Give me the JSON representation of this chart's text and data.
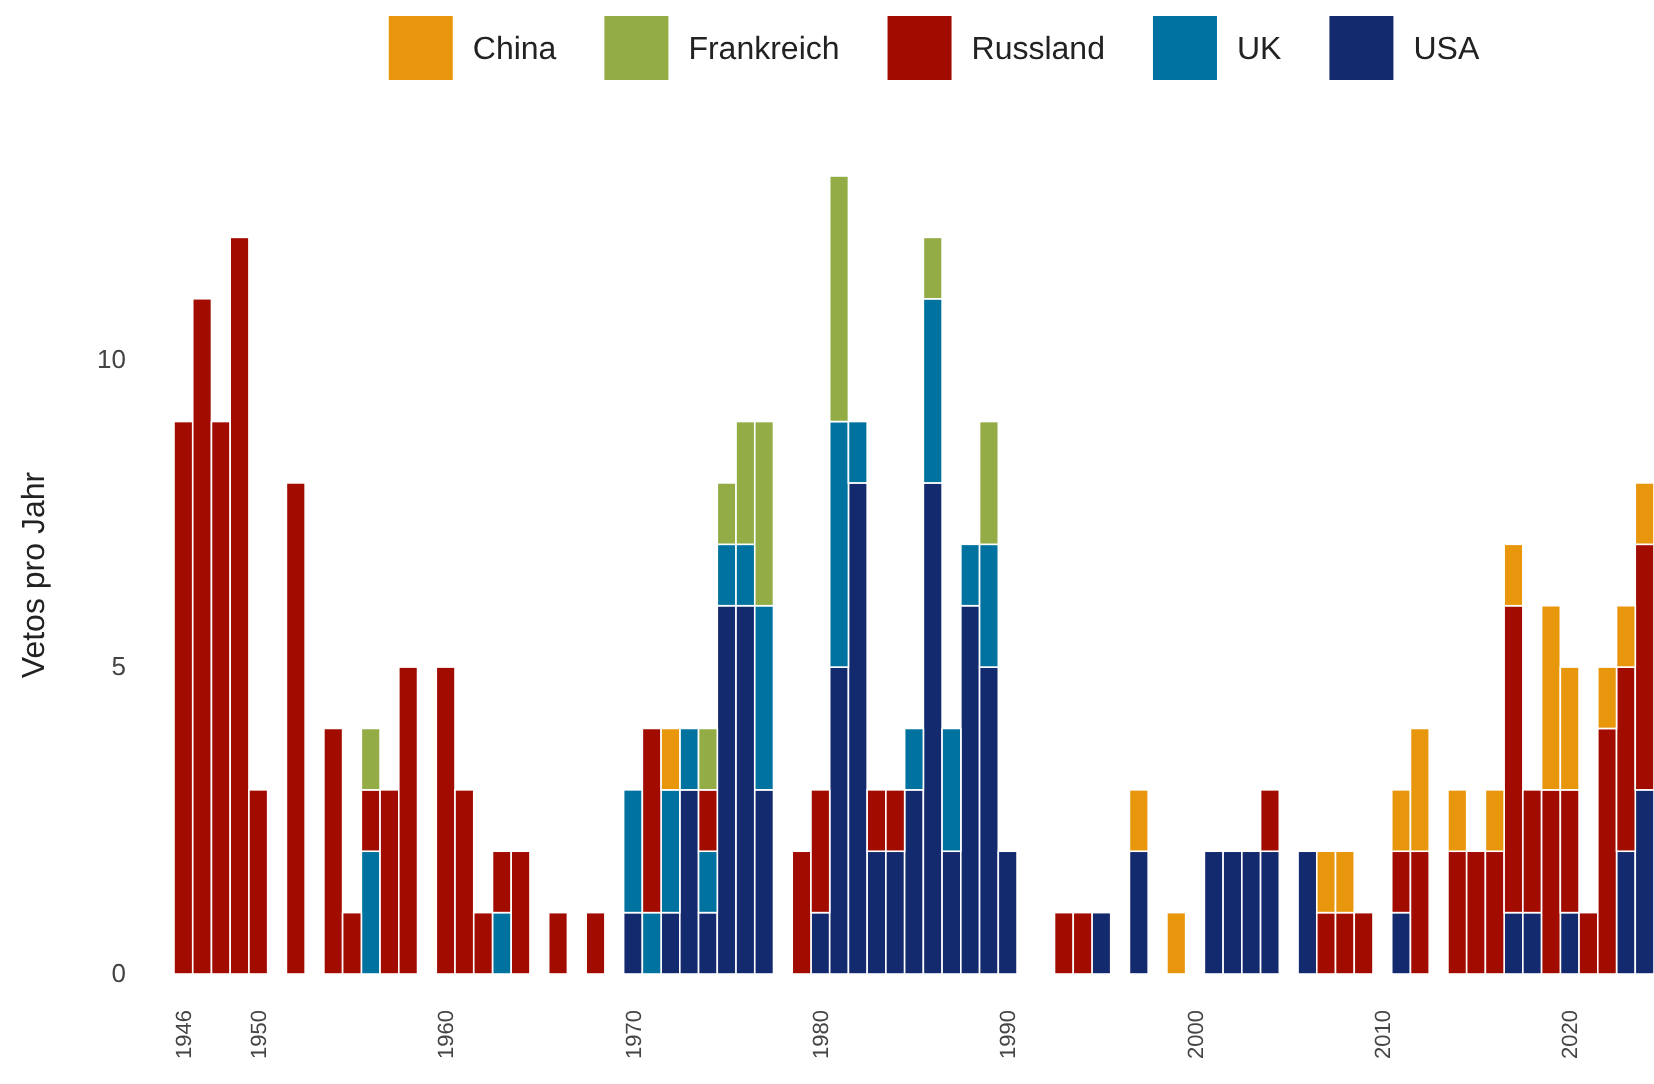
{
  "chart_data": {
    "type": "bar",
    "stacked": true,
    "ylabel": "Vetos pro Jahr",
    "legend": "top",
    "grid": false,
    "x": [
      1946,
      1947,
      1948,
      1949,
      1950,
      1951,
      1952,
      1953,
      1954,
      1955,
      1956,
      1957,
      1958,
      1959,
      1960,
      1961,
      1962,
      1963,
      1964,
      1965,
      1966,
      1967,
      1968,
      1969,
      1970,
      1971,
      1972,
      1973,
      1974,
      1975,
      1976,
      1977,
      1978,
      1979,
      1980,
      1981,
      1982,
      1983,
      1984,
      1985,
      1986,
      1987,
      1988,
      1989,
      1990,
      1991,
      1992,
      1993,
      1994,
      1995,
      1996,
      1997,
      1998,
      1999,
      2000,
      2001,
      2002,
      2003,
      2004,
      2005,
      2006,
      2007,
      2008,
      2009,
      2010,
      2011,
      2012,
      2013,
      2014,
      2015,
      2016,
      2017,
      2018,
      2019,
      2020,
      2021,
      2022,
      2023,
      2024
    ],
    "xlim": [
      1945.5,
      2024.5
    ],
    "xticks": [
      1946,
      1950,
      1960,
      1970,
      1980,
      1990,
      2000,
      2010,
      2020
    ],
    "ylim": [
      0,
      13
    ],
    "yticks": [
      0,
      5,
      10
    ],
    "series": [
      {
        "name": "USA",
        "color": "#142a6e",
        "values": [
          0,
          0,
          0,
          0,
          0,
          0,
          0,
          0,
          0,
          0,
          0,
          0,
          0,
          0,
          0,
          0,
          0,
          0,
          0,
          0,
          0,
          0,
          0,
          0,
          1,
          0,
          1,
          3,
          1,
          6,
          6,
          3,
          0,
          0,
          1,
          5,
          8,
          2,
          2,
          3,
          8,
          2,
          6,
          5,
          2,
          0,
          0,
          0,
          0,
          1,
          0,
          2,
          0,
          0,
          0,
          2,
          2,
          2,
          2,
          0,
          2,
          0,
          0,
          0,
          0,
          1,
          0,
          0,
          0,
          0,
          0,
          1,
          1,
          0,
          1,
          0,
          0,
          2,
          3
        ]
      },
      {
        "name": "UK",
        "color": "#00729f",
        "values": [
          0,
          0,
          0,
          0,
          0,
          0,
          0,
          0,
          0,
          0,
          2,
          0,
          0,
          0,
          0,
          0,
          0,
          1,
          0,
          0,
          0,
          0,
          0,
          0,
          2,
          1,
          2,
          1,
          1,
          1,
          1,
          3,
          0,
          0,
          0,
          4,
          1,
          0,
          0,
          1,
          3,
          2,
          1,
          2,
          0,
          0,
          0,
          0,
          0,
          0,
          0,
          0,
          0,
          0,
          0,
          0,
          0,
          0,
          0,
          0,
          0,
          0,
          0,
          0,
          0,
          0,
          0,
          0,
          0,
          0,
          0,
          0,
          0,
          0,
          0,
          0,
          0,
          0,
          0
        ]
      },
      {
        "name": "Russland",
        "color": "#a20c00",
        "values": [
          9,
          11,
          9,
          12,
          3,
          0,
          8,
          0,
          4,
          1,
          1,
          3,
          5,
          0,
          5,
          3,
          1,
          1,
          2,
          0,
          1,
          0,
          1,
          0,
          0,
          3,
          0,
          0,
          1,
          0,
          0,
          0,
          0,
          2,
          2,
          0,
          0,
          1,
          1,
          0,
          0,
          0,
          0,
          0,
          0,
          0,
          0,
          1,
          1,
          0,
          0,
          0,
          0,
          0,
          0,
          0,
          0,
          0,
          1,
          0,
          0,
          1,
          1,
          1,
          0,
          1,
          2,
          0,
          2,
          2,
          2,
          5,
          2,
          3,
          2,
          1,
          4,
          3,
          4
        ]
      },
      {
        "name": "Frankreich",
        "color": "#93ac45",
        "values": [
          0,
          0,
          0,
          0,
          0,
          0,
          0,
          0,
          0,
          0,
          1,
          0,
          0,
          0,
          0,
          0,
          0,
          0,
          0,
          0,
          0,
          0,
          0,
          0,
          0,
          0,
          0,
          0,
          1,
          1,
          2,
          3,
          0,
          0,
          0,
          4,
          0,
          0,
          0,
          0,
          1,
          0,
          0,
          2,
          0,
          0,
          0,
          0,
          0,
          0,
          0,
          0,
          0,
          0,
          0,
          0,
          0,
          0,
          0,
          0,
          0,
          0,
          0,
          0,
          0,
          0,
          0,
          0,
          0,
          0,
          0,
          0,
          0,
          0,
          0,
          0,
          0,
          0,
          0
        ]
      },
      {
        "name": "China",
        "color": "#e8960c",
        "values": [
          0,
          0,
          0,
          0,
          0,
          0,
          0,
          0,
          0,
          0,
          0,
          0,
          0,
          0,
          0,
          0,
          0,
          0,
          0,
          0,
          0,
          0,
          0,
          0,
          0,
          0,
          1,
          0,
          0,
          0,
          0,
          0,
          0,
          0,
          0,
          0,
          0,
          0,
          0,
          0,
          0,
          0,
          0,
          0,
          0,
          0,
          0,
          0,
          0,
          0,
          0,
          1,
          0,
          1,
          0,
          0,
          0,
          0,
          0,
          0,
          0,
          1,
          1,
          0,
          0,
          1,
          2,
          0,
          1,
          0,
          1,
          1,
          0,
          3,
          2,
          0,
          1,
          1,
          1
        ]
      }
    ]
  }
}
